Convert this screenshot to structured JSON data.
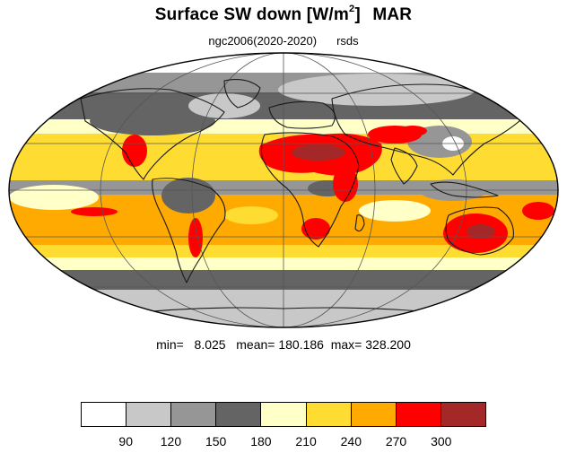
{
  "title": {
    "main": "Surface SW down [W/m",
    "sup": "2",
    "close": "]",
    "season": "MAR"
  },
  "subtitle": {
    "model": "ngc2006(2020-2020)",
    "variable": "rsds"
  },
  "stats": {
    "min_label": "min=",
    "min": "8.025",
    "mean_label": "mean=",
    "mean": "180.186",
    "max_label": "max=",
    "max": "328.200"
  },
  "colorbar": {
    "colors": [
      "#ffffff",
      "#c8c8c8",
      "#969696",
      "#646464",
      "#ffffc8",
      "#ffdc32",
      "#ffaa00",
      "#ff0000",
      "#a52828"
    ],
    "ticks": [
      "90",
      "120",
      "150",
      "180",
      "210",
      "240",
      "270",
      "300"
    ]
  },
  "map": {
    "projection": "Mollweide",
    "land_color": "#1a1a1a",
    "grid_color": "#555555"
  }
}
